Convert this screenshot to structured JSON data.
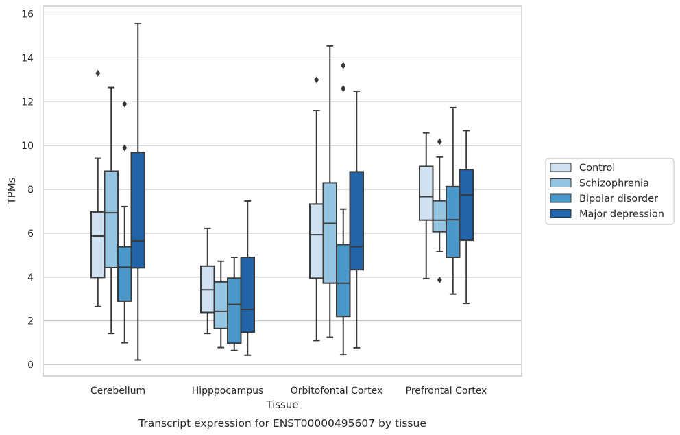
{
  "caption": "Transcript expression for ENST00000495607 by tissue",
  "colors": {
    "Control": "#d0e1f2",
    "Schizophrenia": "#94c4df",
    "Bipolar disorder": "#4a98c9",
    "Major depression": "#2264aa",
    "line": "#3a3a3a",
    "grid": "#cccccc"
  },
  "chart_data": {
    "type": "box",
    "title": "",
    "xlabel": "Tissue",
    "ylabel": "TPMs",
    "ylim": [
      -0.5,
      16.3
    ],
    "yticks": [
      0,
      2,
      4,
      6,
      8,
      10,
      12,
      14,
      16
    ],
    "grid": "horizontal",
    "legend_position": "right",
    "categories": [
      "Cerebellum",
      "Hipppocampus",
      "Orbitofontal Cortex",
      "Prefrontal Cortex"
    ],
    "series": [
      {
        "name": "Control",
        "boxes": [
          {
            "whisker_low": 2.65,
            "q1": 3.98,
            "median": 5.87,
            "q3": 6.97,
            "whisker_high": 9.42,
            "outliers": [
              13.3
            ]
          },
          {
            "whisker_low": 1.42,
            "q1": 2.38,
            "median": 3.42,
            "q3": 4.5,
            "whisker_high": 6.22,
            "outliers": []
          },
          {
            "whisker_low": 1.1,
            "q1": 3.95,
            "median": 5.93,
            "q3": 7.33,
            "whisker_high": 11.6,
            "outliers": [
              13.0
            ]
          },
          {
            "whisker_low": 3.93,
            "q1": 6.6,
            "median": 7.67,
            "q3": 9.05,
            "whisker_high": 10.58,
            "outliers": []
          }
        ]
      },
      {
        "name": "Schizophrenia",
        "boxes": [
          {
            "whisker_low": 1.42,
            "q1": 4.43,
            "median": 6.93,
            "q3": 8.83,
            "whisker_high": 12.65,
            "outliers": []
          },
          {
            "whisker_low": 0.78,
            "q1": 1.65,
            "median": 2.43,
            "q3": 3.78,
            "whisker_high": 4.72,
            "outliers": []
          },
          {
            "whisker_low": 1.25,
            "q1": 3.72,
            "median": 6.45,
            "q3": 8.3,
            "whisker_high": 14.55,
            "outliers": []
          },
          {
            "whisker_low": 5.15,
            "q1": 6.07,
            "median": 6.6,
            "q3": 7.48,
            "whisker_high": 9.48,
            "outliers": [
              10.18,
              3.87
            ]
          }
        ]
      },
      {
        "name": "Bipolar disorder",
        "boxes": [
          {
            "whisker_low": 1.0,
            "q1": 2.9,
            "median": 4.45,
            "q3": 5.38,
            "whisker_high": 7.22,
            "outliers": [
              9.9,
              11.9
            ]
          },
          {
            "whisker_low": 0.65,
            "q1": 0.98,
            "median": 2.75,
            "q3": 3.95,
            "whisker_high": 4.9,
            "outliers": []
          },
          {
            "whisker_low": 0.45,
            "q1": 2.2,
            "median": 3.72,
            "q3": 5.48,
            "whisker_high": 7.1,
            "outliers": [
              12.6,
              13.65
            ]
          },
          {
            "whisker_low": 3.22,
            "q1": 4.9,
            "median": 6.62,
            "q3": 8.13,
            "whisker_high": 11.73,
            "outliers": []
          }
        ]
      },
      {
        "name": "Major depression",
        "boxes": [
          {
            "whisker_low": 0.22,
            "q1": 4.42,
            "median": 5.65,
            "q3": 9.68,
            "whisker_high": 15.58,
            "outliers": []
          },
          {
            "whisker_low": 0.43,
            "q1": 1.48,
            "median": 2.52,
            "q3": 4.9,
            "whisker_high": 7.47,
            "outliers": []
          },
          {
            "whisker_low": 0.77,
            "q1": 4.33,
            "median": 5.38,
            "q3": 8.8,
            "whisker_high": 12.48,
            "outliers": []
          },
          {
            "whisker_low": 2.8,
            "q1": 5.68,
            "median": 7.75,
            "q3": 8.9,
            "whisker_high": 10.68,
            "outliers": []
          }
        ]
      }
    ]
  }
}
